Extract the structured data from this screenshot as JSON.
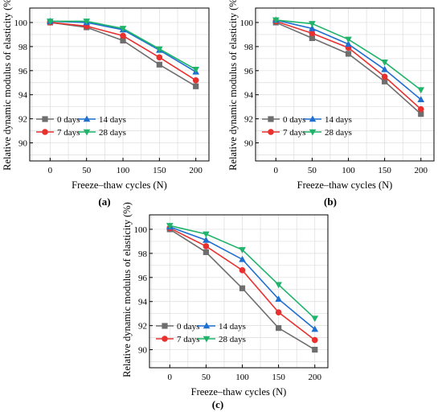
{
  "chart_data": [
    {
      "type": "line",
      "panel_label": "(a)",
      "xlabel": "Freeze–thaw cycles (N)",
      "ylabel": "Relative dynamic modulus of elasticity (%)",
      "x": [
        0,
        50,
        100,
        150,
        200
      ],
      "xlim": [
        -28,
        218
      ],
      "ylim": [
        88.5,
        101.2
      ],
      "yticks": [
        90,
        92,
        94,
        96,
        98,
        100
      ],
      "grid": true,
      "legend_position": "bottom-left",
      "series": [
        {
          "name": "0 days",
          "color": "#6e6e6e",
          "marker": "square",
          "values": [
            100.0,
            99.6,
            98.5,
            96.5,
            94.7
          ]
        },
        {
          "name": "7 days",
          "color": "#e8312f",
          "marker": "circle",
          "values": [
            100.0,
            99.7,
            98.9,
            97.1,
            95.2
          ]
        },
        {
          "name": "14 days",
          "color": "#1f6fd1",
          "marker": "triangle-up",
          "values": [
            100.1,
            100.0,
            99.4,
            97.7,
            95.9
          ]
        },
        {
          "name": "28 days",
          "color": "#1fb46a",
          "marker": "triangle-down",
          "values": [
            100.1,
            100.1,
            99.5,
            97.8,
            96.1
          ]
        }
      ]
    },
    {
      "type": "line",
      "panel_label": "(b)",
      "xlabel": "Freeze–thaw cycles (N)",
      "ylabel": "Relative dynamic modulus of elasticity (%)",
      "x": [
        0,
        50,
        100,
        150,
        200
      ],
      "xlim": [
        -28,
        218
      ],
      "ylim": [
        88.5,
        101.2
      ],
      "yticks": [
        90,
        92,
        94,
        96,
        98,
        100
      ],
      "grid": true,
      "legend_position": "bottom-left",
      "series": [
        {
          "name": "0 days",
          "color": "#6e6e6e",
          "marker": "square",
          "values": [
            100.0,
            98.7,
            97.4,
            95.1,
            92.4
          ]
        },
        {
          "name": "7 days",
          "color": "#e8312f",
          "marker": "circle",
          "values": [
            100.1,
            99.1,
            97.9,
            95.5,
            92.8
          ]
        },
        {
          "name": "14 days",
          "color": "#1f6fd1",
          "marker": "triangle-up",
          "values": [
            100.2,
            99.5,
            98.2,
            96.1,
            93.6
          ]
        },
        {
          "name": "28 days",
          "color": "#1fb46a",
          "marker": "triangle-down",
          "values": [
            100.2,
            99.9,
            98.6,
            96.7,
            94.4
          ]
        }
      ]
    },
    {
      "type": "line",
      "panel_label": "(c)",
      "xlabel": "Freeze–thaw cycles (N)",
      "ylabel": "Relative dynamic modulus of elasticity (%)",
      "x": [
        0,
        50,
        100,
        150,
        200
      ],
      "xlim": [
        -28,
        218
      ],
      "ylim": [
        88.5,
        101.2
      ],
      "yticks": [
        90,
        92,
        94,
        96,
        98,
        100
      ],
      "grid": true,
      "legend_position": "bottom-left",
      "series": [
        {
          "name": "0 days",
          "color": "#6e6e6e",
          "marker": "square",
          "values": [
            100.0,
            98.1,
            95.1,
            91.8,
            90.0
          ]
        },
        {
          "name": "7 days",
          "color": "#e8312f",
          "marker": "circle",
          "values": [
            100.1,
            98.6,
            96.6,
            93.1,
            90.8
          ]
        },
        {
          "name": "14 days",
          "color": "#1f6fd1",
          "marker": "triangle-up",
          "values": [
            100.2,
            99.1,
            97.5,
            94.2,
            91.7
          ]
        },
        {
          "name": "28 days",
          "color": "#1fb46a",
          "marker": "triangle-down",
          "values": [
            100.3,
            99.6,
            98.3,
            95.4,
            92.6
          ]
        }
      ]
    }
  ]
}
